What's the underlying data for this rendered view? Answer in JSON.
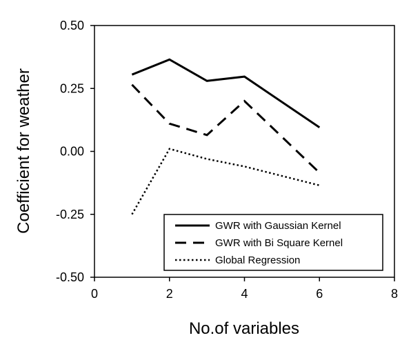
{
  "chart_data": {
    "type": "line",
    "xlabel": "No.of variables",
    "ylabel": "Coefficient for weather",
    "xlim": [
      0,
      8
    ],
    "ylim": [
      -0.5,
      0.5
    ],
    "x_ticks": [
      "0",
      "2",
      "4",
      "6",
      "8"
    ],
    "y_ticks": [
      "0.50",
      "0.25",
      "0.00",
      "-0.25",
      "-0.50"
    ],
    "grid": false,
    "legend_position": "bottom-right",
    "series": [
      {
        "name": "GWR with Gaussian Kernel",
        "style": "solid",
        "color": "#000000",
        "x": [
          1,
          2,
          3,
          4,
          6
        ],
        "y": [
          0.305,
          0.365,
          0.28,
          0.297,
          0.095
        ]
      },
      {
        "name": "GWR with Bi Square Kernel",
        "style": "dashed",
        "color": "#000000",
        "x": [
          1,
          2,
          3,
          4,
          6
        ],
        "y": [
          0.265,
          0.11,
          0.065,
          0.2,
          -0.085
        ]
      },
      {
        "name": "Global Regression",
        "style": "dotted",
        "color": "#000000",
        "x": [
          1,
          2,
          3,
          4,
          6
        ],
        "y": [
          -0.25,
          0.01,
          -0.03,
          -0.06,
          -0.135
        ]
      }
    ]
  }
}
